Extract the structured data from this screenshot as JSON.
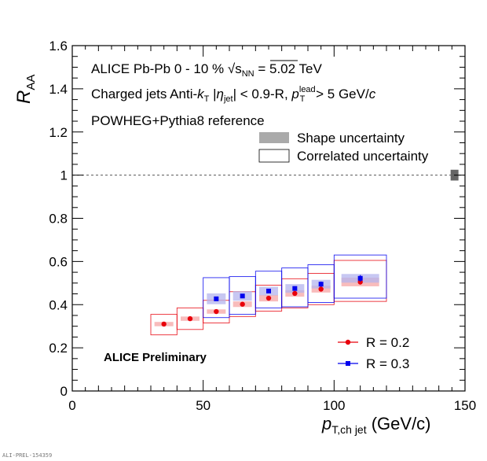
{
  "chart_data": {
    "type": "scatter",
    "title": "",
    "xlabel": {
      "main": "p",
      "sub": "T,ch jet",
      "unit": " (GeV/c)"
    },
    "ylabel": {
      "main": "R",
      "sub": "AA"
    },
    "xlim": [
      0,
      150
    ],
    "ylim": [
      0,
      1.6
    ],
    "xticks": [
      0,
      50,
      100,
      150
    ],
    "yticks": [
      0,
      0.2,
      0.4,
      0.6,
      0.8,
      1,
      1.2,
      1.4,
      1.6
    ],
    "ytick_labels": [
      "0",
      "0.2",
      "0.4",
      "0.6",
      "0.8",
      "1",
      "1.2",
      "1.4",
      "1.6"
    ],
    "reference_line": 1.0,
    "annotations": {
      "line1": {
        "a": "ALICE  Pb-Pb  0 - 10 %  ",
        "sqrt": "s",
        "sqrt_sub": "NN",
        "b": " = 5.02 TeV"
      },
      "line2": {
        "a": "Charged jets  Anti-",
        "k": "k",
        "k_sub": "T",
        "b": "  |",
        "eta": "η",
        "eta_sub": "jet",
        "c": "| < 0.9-R,  ",
        "p": "p",
        "p_sup": "lead",
        "p_sub": "T",
        "d": " > 5 GeV/",
        "c_unit": "c"
      },
      "line3": "POWHEG+Pythia8 reference",
      "preliminary": "ALICE Preliminary",
      "watermark": "ALI-PREL-154359"
    },
    "legend_uncertainties": [
      {
        "label": "Shape uncertainty",
        "color": "#aaaaaa"
      },
      {
        "label": "Correlated uncertainty",
        "color": "#000000"
      }
    ],
    "normalization_box": {
      "x": 146,
      "low": 0.975,
      "high": 1.025,
      "color": "#666666"
    },
    "series": [
      {
        "name": "R = 0.2",
        "color": "#e8000b",
        "shape_color": "#f5a6a6",
        "marker": "circle",
        "points": [
          {
            "x": 35,
            "y": 0.31,
            "xlow": 30,
            "xhigh": 40,
            "shape": 0.01,
            "corr_low": 0.26,
            "corr_high": 0.355,
            "stat": 0.004
          },
          {
            "x": 45,
            "y": 0.335,
            "xlow": 40,
            "xhigh": 50,
            "shape": 0.01,
            "corr_low": 0.285,
            "corr_high": 0.385,
            "stat": 0.004
          },
          {
            "x": 55,
            "y": 0.368,
            "xlow": 50,
            "xhigh": 60,
            "shape": 0.01,
            "corr_low": 0.315,
            "corr_high": 0.42,
            "stat": 0.004
          },
          {
            "x": 65,
            "y": 0.402,
            "xlow": 60,
            "xhigh": 70,
            "shape": 0.013,
            "corr_low": 0.345,
            "corr_high": 0.46,
            "stat": 0.004
          },
          {
            "x": 75,
            "y": 0.43,
            "xlow": 70,
            "xhigh": 80,
            "shape": 0.015,
            "corr_low": 0.37,
            "corr_high": 0.49,
            "stat": 0.005
          },
          {
            "x": 85,
            "y": 0.452,
            "xlow": 80,
            "xhigh": 90,
            "shape": 0.015,
            "corr_low": 0.385,
            "corr_high": 0.52,
            "stat": 0.006
          },
          {
            "x": 95,
            "y": 0.472,
            "xlow": 90,
            "xhigh": 100,
            "shape": 0.016,
            "corr_low": 0.4,
            "corr_high": 0.545,
            "stat": 0.008
          },
          {
            "x": 110,
            "y": 0.505,
            "xlow": 100,
            "xhigh": 120,
            "shape": 0.02,
            "corr_low": 0.415,
            "corr_high": 0.605,
            "stat": 0.012
          }
        ]
      },
      {
        "name": "R = 0.3",
        "color": "#0000ee",
        "shape_color": "#b4b4ee",
        "marker": "square",
        "points": [
          {
            "x": 55,
            "y": 0.427,
            "xlow": 50,
            "xhigh": 60,
            "shape": 0.025,
            "corr_low": 0.34,
            "corr_high": 0.525,
            "stat": 0.006
          },
          {
            "x": 65,
            "y": 0.44,
            "xlow": 60,
            "xhigh": 70,
            "shape": 0.022,
            "corr_low": 0.355,
            "corr_high": 0.53,
            "stat": 0.006
          },
          {
            "x": 75,
            "y": 0.463,
            "xlow": 70,
            "xhigh": 80,
            "shape": 0.02,
            "corr_low": 0.385,
            "corr_high": 0.555,
            "stat": 0.006
          },
          {
            "x": 85,
            "y": 0.475,
            "xlow": 80,
            "xhigh": 90,
            "shape": 0.02,
            "corr_low": 0.39,
            "corr_high": 0.57,
            "stat": 0.008
          },
          {
            "x": 95,
            "y": 0.495,
            "xlow": 90,
            "xhigh": 100,
            "shape": 0.02,
            "corr_low": 0.41,
            "corr_high": 0.585,
            "stat": 0.012
          },
          {
            "x": 110,
            "y": 0.522,
            "xlow": 100,
            "xhigh": 120,
            "shape": 0.02,
            "corr_low": 0.43,
            "corr_high": 0.63,
            "stat": 0.015
          }
        ]
      }
    ]
  }
}
